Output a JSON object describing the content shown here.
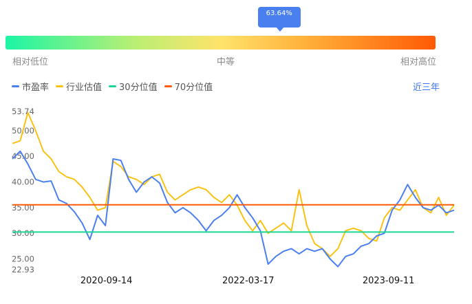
{
  "percentile": {
    "label": "63.64%",
    "value": 63.64
  },
  "gauge": {
    "low_label": "相对低位",
    "mid_label": "中等",
    "high_label": "相对高位"
  },
  "legend": [
    {
      "label": "市盈率",
      "color": "#4a7ff0"
    },
    {
      "label": "行业估值",
      "color": "#f9c213"
    },
    {
      "label": "30分位值",
      "color": "#19d693"
    },
    {
      "label": "70分位值",
      "color": "#ff5a05"
    }
  ],
  "range_button": "近三年",
  "chart_data": {
    "type": "line",
    "ylim": [
      22.93,
      53.74
    ],
    "y_ticks": [
      "53.74",
      "50.00",
      "45.00",
      "40.00",
      "35.00",
      "30.00",
      "25.00",
      "22.93"
    ],
    "x_ticks": [
      "2020-09-14",
      "2022-03-17",
      "2023-09-11"
    ],
    "x": [
      "2019-09-16",
      "2019-10-16",
      "2019-11-15",
      "2019-12-15",
      "2020-01-14",
      "2020-02-13",
      "2020-03-14",
      "2020-04-13",
      "2020-05-13",
      "2020-06-12",
      "2020-07-12",
      "2020-08-11",
      "2020-09-10",
      "2020-10-10",
      "2020-11-09",
      "2020-12-09",
      "2021-01-08",
      "2021-02-07",
      "2021-03-09",
      "2021-04-08",
      "2021-05-08",
      "2021-06-07",
      "2021-07-07",
      "2021-08-06",
      "2021-09-05",
      "2021-10-05",
      "2021-11-04",
      "2021-12-04",
      "2022-01-03",
      "2022-02-02",
      "2022-03-04",
      "2022-04-03",
      "2022-05-03",
      "2022-06-02",
      "2022-07-02",
      "2022-08-01",
      "2022-08-31",
      "2022-09-30",
      "2022-10-30",
      "2022-11-29",
      "2022-12-29",
      "2023-01-28",
      "2023-02-27",
      "2023-03-29",
      "2023-04-28",
      "2023-05-28",
      "2023-06-27",
      "2023-07-27",
      "2023-08-26",
      "2023-09-25",
      "2023-10-25",
      "2023-11-24",
      "2023-12-24",
      "2024-01-23",
      "2024-02-22",
      "2024-03-23",
      "2024-04-22",
      "2024-05-22"
    ],
    "series": [
      {
        "name": "市盈率",
        "color": "#4a7ff0",
        "values": [
          44.5,
          46.0,
          43.5,
          40.5,
          40.0,
          40.2,
          36.5,
          35.8,
          34.2,
          32.0,
          28.8,
          33.5,
          31.5,
          44.5,
          44.2,
          40.5,
          38.0,
          40.0,
          41.0,
          39.8,
          36.0,
          34.0,
          35.0,
          34.0,
          32.5,
          30.5,
          32.5,
          33.5,
          35.0,
          37.5,
          35.0,
          33.0,
          30.5,
          24.0,
          25.5,
          26.5,
          27.0,
          26.0,
          27.0,
          26.5,
          27.0,
          25.0,
          23.5,
          25.5,
          26.0,
          27.5,
          28.0,
          29.5,
          30.0,
          34.5,
          36.5,
          39.5,
          37.0,
          35.0,
          34.5,
          35.5,
          34.0,
          34.5
        ]
      },
      {
        "name": "行业估值",
        "color": "#f9c213",
        "values": [
          47.5,
          48.0,
          53.5,
          50.0,
          46.0,
          44.5,
          42.0,
          41.0,
          40.5,
          39.0,
          37.0,
          34.5,
          35.0,
          44.0,
          43.0,
          41.0,
          40.5,
          39.5,
          41.0,
          41.5,
          38.0,
          36.5,
          37.5,
          38.5,
          39.0,
          38.5,
          37.0,
          36.0,
          37.5,
          35.5,
          32.5,
          30.5,
          32.5,
          30.0,
          31.0,
          32.0,
          30.5,
          38.5,
          31.5,
          28.0,
          27.0,
          25.5,
          27.0,
          30.5,
          31.0,
          30.5,
          29.0,
          28.5,
          33.0,
          35.0,
          34.5,
          36.5,
          38.5,
          35.0,
          34.0,
          37.0,
          33.5,
          35.5
        ]
      },
      {
        "name": "30分位值",
        "color": "#19d693",
        "values": "constant",
        "constant": 30.25
      },
      {
        "name": "70分位值",
        "color": "#ff5a05",
        "values": "constant",
        "constant": 35.55
      }
    ]
  }
}
